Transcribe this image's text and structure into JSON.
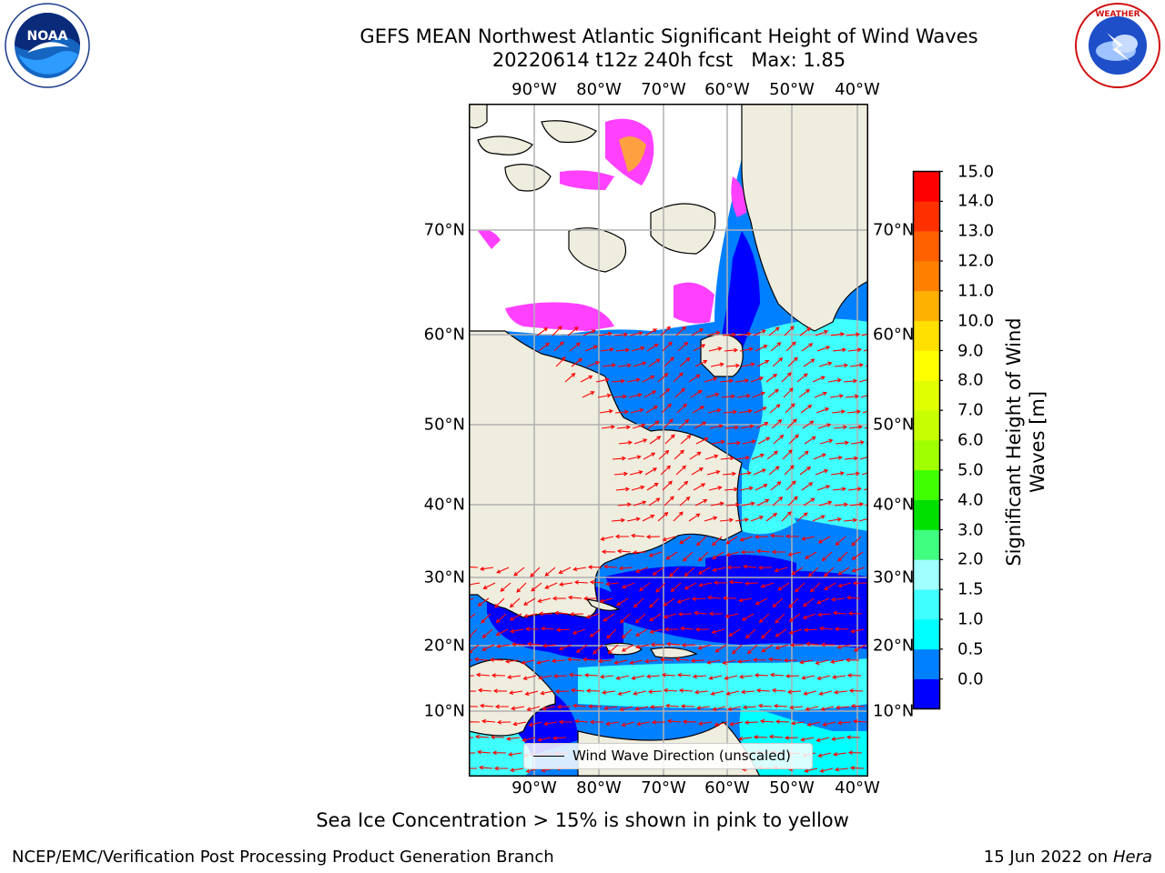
{
  "title": {
    "line1": "GEFS MEAN Northwest Atlantic Significant Height of Wind Waves",
    "line2": "20220614 t12z 240h fcst   Max: 1.85"
  },
  "logos": {
    "left": {
      "icon": "noaa-logo",
      "text": "NOAA",
      "ring_text": "NATIONAL OCEANIC AND ATMOSPHERIC ADMINISTRATION · U.S. DEPARTMENT OF COMMERCE"
    },
    "right": {
      "icon": "nws-logo",
      "ring_text": "NATIONAL WEATHER SERVICE"
    }
  },
  "map": {
    "lon_ticks": [
      "90°W",
      "80°W",
      "70°W",
      "60°W",
      "50°W",
      "40°W"
    ],
    "lat_ticks": [
      "70°N",
      "60°N",
      "50°N",
      "40°N",
      "30°N",
      "20°N",
      "10°N"
    ],
    "legend": "Wind Wave Direction (unscaled)",
    "colors": {
      "land": "#efedde",
      "ice_free_unfilled": "#ffffff",
      "wave_0_0.5": "#0000ff",
      "wave_0.5_1": "#0080ff",
      "wave_1_1.5": "#00ffff",
      "wave_1.5_2": "#40ffff",
      "sea_ice_low": "#ff40ff",
      "sea_ice_high": "#ffa040",
      "arrows": "#ff0000",
      "coast": "#000000",
      "grid": "#b0b0b0"
    }
  },
  "colorbar": {
    "label": "Significant Height of Wind Waves [m]",
    "label_line1": "Significant Height of Wind",
    "label_line2": "Waves [m]",
    "ticks": [
      "15.0",
      "14.0",
      "13.0",
      "12.0",
      "11.0",
      "10.0",
      "9.0",
      "8.0",
      "7.0",
      "6.0",
      "5.0",
      "4.0",
      "3.0",
      "2.0",
      "1.5",
      "1.0",
      "0.5",
      "0.0"
    ],
    "colors_bottom_to_top": [
      "#0000ff",
      "#0080ff",
      "#00ffff",
      "#40ffff",
      "#a0ffff",
      "#40ff80",
      "#00e000",
      "#40ff00",
      "#a0ff00",
      "#c8ff00",
      "#e0ff00",
      "#ffff00",
      "#ffe000",
      "#ffb000",
      "#ff8000",
      "#ff6000",
      "#ff3000",
      "#ff0000"
    ]
  },
  "note": "Sea Ice Concentration > 15% is shown in pink to yellow",
  "footer": {
    "left": "NCEP/EMC/Verification Post Processing Product Generation Branch",
    "right_date": "15 Jun 2022 on",
    "right_host": "Hera"
  }
}
